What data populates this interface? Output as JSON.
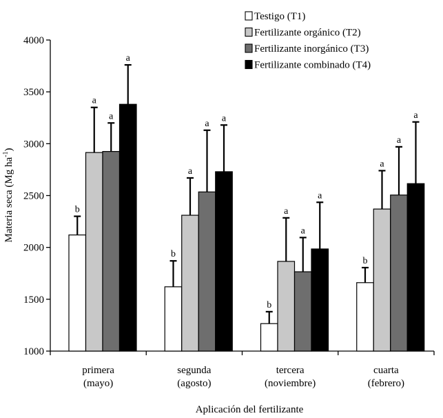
{
  "chart_data": {
    "type": "bar",
    "title": "",
    "xlabel": "Aplicación del  fertilizante",
    "ylabel": "Materia seca (Mg  ha-1)",
    "ylabel_main": "Materia seca (Mg  ha",
    "ylabel_sup": "-1",
    "ylabel_end": ")",
    "ylim": [
      1000,
      4000
    ],
    "yticks": [
      "1000",
      "1500",
      "2000",
      "2500",
      "3000",
      "3500",
      "4000"
    ],
    "grid": false,
    "legend_position": "top-right",
    "categories": [
      {
        "line1": "primera",
        "line2": "(mayo)"
      },
      {
        "line1": "segunda",
        "line2": "(agosto)"
      },
      {
        "line1": "tercera",
        "line2": "(noviembre)"
      },
      {
        "line1": "cuarta",
        "line2": "(febrero)"
      }
    ],
    "series": [
      {
        "name": "Testigo (T1)",
        "color": "#ffffff",
        "values": [
          2120,
          1620,
          1265,
          1660
        ],
        "errors": [
          180,
          250,
          115,
          145
        ],
        "letters": [
          "b",
          "b",
          "b",
          "b"
        ]
      },
      {
        "name": "Fertilizante orgánico (T2)",
        "color": "#c8c8c8",
        "values": [
          2915,
          2310,
          1865,
          2370
        ],
        "errors": [
          435,
          360,
          420,
          370
        ],
        "letters": [
          "a",
          "a",
          "a",
          "a"
        ]
      },
      {
        "name": "Fertilizante inorgánico (T3)",
        "color": "#6e6e6e",
        "values": [
          2925,
          2535,
          1765,
          2505
        ],
        "errors": [
          275,
          595,
          330,
          465
        ],
        "letters": [
          "a",
          "a",
          "a",
          "a"
        ]
      },
      {
        "name": "Fertilizante combinado (T4)",
        "color": "#000000",
        "values": [
          3380,
          2730,
          1985,
          2615
        ],
        "errors": [
          380,
          450,
          450,
          595
        ],
        "letters": [
          "a",
          "a",
          "a",
          "a"
        ]
      }
    ]
  }
}
